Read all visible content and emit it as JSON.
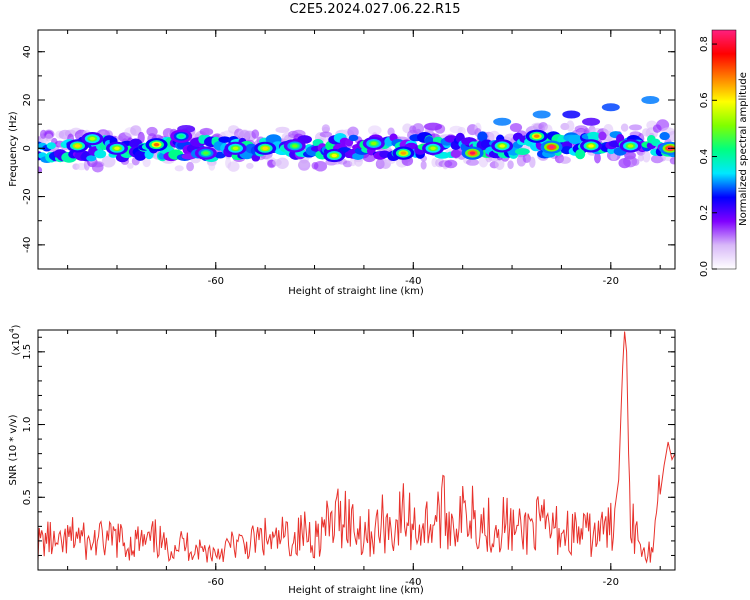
{
  "title": "C2E5.2024.027.06.22.R15",
  "chart_data": [
    {
      "type": "heatmap",
      "xlabel": "Height of straight line (km)",
      "ylabel": "Frequency (Hz)",
      "xlim": [
        -78,
        -13.5
      ],
      "ylim": [
        -50,
        49
      ],
      "x_ticks": [
        -60,
        -40,
        -20
      ],
      "y_ticks": [
        40,
        20,
        0,
        -20,
        -40
      ],
      "x_tick_labels": [
        "-60",
        "-40",
        "-20"
      ],
      "y_tick_labels": [
        "40",
        "20",
        "0",
        "-20",
        "-40"
      ],
      "colorbar": {
        "label": "Normalized spectral amplitude",
        "range": [
          0.0,
          0.85
        ],
        "ticks": [
          0.0,
          0.2,
          0.4,
          0.6,
          0.8
        ],
        "tick_labels": [
          "0.0",
          "0.2",
          "0.4",
          "0.6",
          "0.8"
        ],
        "colormap": [
          "#ffffff",
          "#d8b8f8",
          "#8000ff",
          "#0000ff",
          "#00e8ff",
          "#00ff80",
          "#80ff00",
          "#ffff00",
          "#ff8000",
          "#ff0000",
          "#ff2080"
        ]
      },
      "band": {
        "center_freq_at_start": -1,
        "center_freq_at_end": 2,
        "core_halfwidth_hz": 4,
        "halo_halfwidth_hz": 8
      },
      "hotspots": [
        {
          "x": -74,
          "y": 1,
          "v": 0.62
        },
        {
          "x": -72.5,
          "y": 4,
          "v": 0.55
        },
        {
          "x": -70,
          "y": 0,
          "v": 0.58
        },
        {
          "x": -66,
          "y": 1.5,
          "v": 0.7
        },
        {
          "x": -63.5,
          "y": 5,
          "v": 0.42
        },
        {
          "x": -61,
          "y": -2,
          "v": 0.48
        },
        {
          "x": -58,
          "y": 0,
          "v": 0.55
        },
        {
          "x": -55,
          "y": 0,
          "v": 0.62
        },
        {
          "x": -52,
          "y": 1,
          "v": 0.5
        },
        {
          "x": -48,
          "y": -3,
          "v": 0.6
        },
        {
          "x": -44,
          "y": 2,
          "v": 0.52
        },
        {
          "x": -41,
          "y": -2,
          "v": 0.66
        },
        {
          "x": -38,
          "y": 0,
          "v": 0.55
        },
        {
          "x": -34,
          "y": -2,
          "v": 0.82
        },
        {
          "x": -31,
          "y": 1,
          "v": 0.58
        },
        {
          "x": -27.5,
          "y": 5,
          "v": 0.68
        },
        {
          "x": -26,
          "y": 0.5,
          "v": 0.85
        },
        {
          "x": -22,
          "y": 1,
          "v": 0.6
        },
        {
          "x": -18,
          "y": 1,
          "v": 0.55
        },
        {
          "x": -14,
          "y": 0,
          "v": 0.85
        }
      ],
      "blobs": [
        {
          "x": -27,
          "y": 14,
          "v": 0.3
        },
        {
          "x": -24,
          "y": 14,
          "v": 0.25
        },
        {
          "x": -20,
          "y": 17,
          "v": 0.28
        },
        {
          "x": -31,
          "y": 11,
          "v": 0.3
        },
        {
          "x": -16,
          "y": 20,
          "v": 0.3
        },
        {
          "x": -22,
          "y": 11,
          "v": 0.2
        },
        {
          "x": -63,
          "y": 8,
          "v": 0.2
        },
        {
          "x": -38,
          "y": 9,
          "v": 0.15
        }
      ]
    },
    {
      "type": "line",
      "xlabel": "Height of straight line (km)",
      "ylabel": "SNR (10 * v/v)",
      "y_multiplier": "(x10",
      "y_multiplier_exp": "4",
      "y_multiplier_close": ")",
      "xlim": [
        -78,
        -13.5
      ],
      "ylim": [
        0,
        1.65
      ],
      "x_ticks": [
        -60,
        -40,
        -20
      ],
      "y_ticks": [
        0.5,
        1.0,
        1.5
      ],
      "x_tick_labels": [
        "-60",
        "-40",
        "-20"
      ],
      "y_tick_labels": [
        "0.5",
        "1.0",
        "1.5"
      ],
      "series": [
        {
          "color": "#e8322c",
          "x": [
            -78,
            -77,
            -76,
            -75,
            -74,
            -73,
            -72,
            -71,
            -70,
            -69,
            -68,
            -67,
            -66,
            -65,
            -64,
            -63,
            -62,
            -61,
            -60,
            -59,
            -58,
            -57,
            -56,
            -55,
            -54,
            -53,
            -52,
            -51,
            -50,
            -49,
            -48,
            -47,
            -46,
            -45,
            -44,
            -43,
            -42,
            -41,
            -40,
            -39,
            -38,
            -37,
            -36,
            -35,
            -34,
            -33,
            -32,
            -31,
            -30,
            -29,
            -28,
            -27,
            -26,
            -25,
            -24,
            -23,
            -22,
            -21,
            -20,
            -19.6,
            -19.2,
            -18.8,
            -18.6,
            -18.4,
            -18.2,
            -18.0,
            -17.6,
            -17.0,
            -16.0,
            -15.5,
            -15.0,
            -14.6,
            -14.2,
            -13.8,
            -13.5
          ],
          "y": [
            0.18,
            0.22,
            0.15,
            0.2,
            0.25,
            0.17,
            0.21,
            0.19,
            0.23,
            0.16,
            0.2,
            0.18,
            0.22,
            0.14,
            0.19,
            0.17,
            0.15,
            0.13,
            0.12,
            0.15,
            0.18,
            0.16,
            0.2,
            0.22,
            0.18,
            0.24,
            0.21,
            0.26,
            0.23,
            0.28,
            0.32,
            0.42,
            0.3,
            0.27,
            0.25,
            0.33,
            0.28,
            0.38,
            0.31,
            0.3,
            0.34,
            0.4,
            0.33,
            0.36,
            0.45,
            0.32,
            0.3,
            0.34,
            0.28,
            0.25,
            0.32,
            0.3,
            0.28,
            0.27,
            0.26,
            0.25,
            0.24,
            0.26,
            0.28,
            0.42,
            0.62,
            1.4,
            1.64,
            1.5,
            0.8,
            0.4,
            0.3,
            0.2,
            0.12,
            0.35,
            0.52,
            0.72,
            0.88,
            0.76,
            0.8
          ]
        }
      ]
    }
  ]
}
